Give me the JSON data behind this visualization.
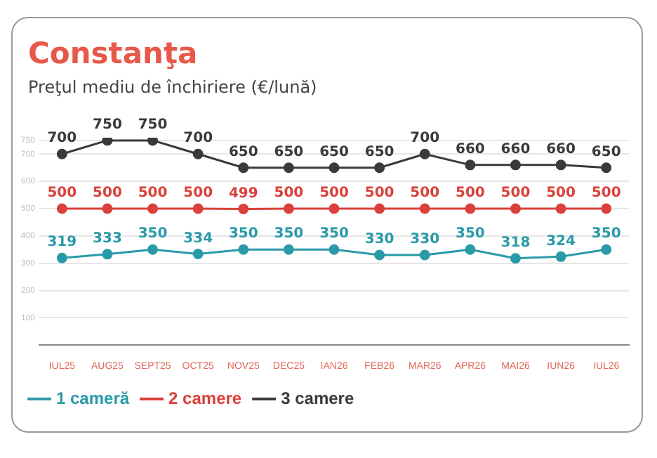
{
  "chart_data": {
    "type": "line",
    "title": "Constanţa",
    "subtitle": "Preţul mediu de închiriere (€/lună)",
    "categories": [
      "IUL25",
      "AUG25",
      "SEPT25",
      "OCT25",
      "NOV25",
      "DEC25",
      "IAN26",
      "FEB26",
      "MAR26",
      "APR26",
      "MAI26",
      "IUN26",
      "IUL26"
    ],
    "series": [
      {
        "name": "1 cameră",
        "color": "#2a9aa8",
        "values": [
          319,
          333,
          350,
          334,
          350,
          350,
          350,
          330,
          330,
          350,
          318,
          324,
          350
        ]
      },
      {
        "name": "2 camere",
        "color": "#d9413a",
        "values": [
          500,
          500,
          500,
          500,
          499,
          500,
          500,
          500,
          500,
          500,
          500,
          500,
          500
        ]
      },
      {
        "name": "3 camere",
        "color": "#3a3a3a",
        "values": [
          700,
          750,
          750,
          700,
          650,
          650,
          650,
          650,
          700,
          660,
          660,
          660,
          650
        ]
      }
    ],
    "ylim": [
      0,
      760
    ],
    "yticks": [
      100,
      200,
      300,
      400,
      500,
      600,
      700,
      750
    ],
    "grid": "y",
    "legend": "bottom left",
    "marker": "circle",
    "line_style": "solid",
    "data_labels": true
  }
}
